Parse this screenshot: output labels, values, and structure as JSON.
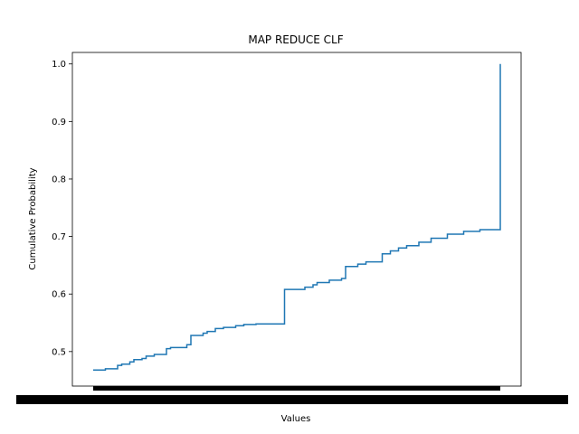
{
  "chart_data": {
    "type": "line",
    "title": "MAP REDUCE CLF",
    "xlabel": "Values",
    "ylabel": "Cumulative Probability",
    "ylim": [
      0.44,
      1.02
    ],
    "y_ticks": [
      "0.5",
      "0.6",
      "0.7",
      "0.8",
      "0.9",
      "1.0"
    ],
    "x_tick_labels_note": "x tick labels are dense overlapping text, rendered as a solid black band",
    "grid": false,
    "legend": "none",
    "line_color": "#1f77b4",
    "series": [
      {
        "x": [
          0,
          0.03,
          0.06,
          0.07,
          0.09,
          0.1,
          0.12,
          0.13,
          0.15,
          0.18,
          0.19,
          0.23,
          0.24,
          0.27,
          0.28,
          0.3,
          0.32,
          0.35,
          0.37,
          0.4,
          0.47,
          0.47,
          0.52,
          0.54,
          0.55,
          0.58,
          0.61,
          0.62,
          0.65,
          0.67,
          0.71,
          0.73,
          0.75,
          0.77,
          0.8,
          0.83,
          0.87,
          0.91,
          0.95,
          1.0,
          1.0
        ],
        "y": [
          0.468,
          0.47,
          0.476,
          0.478,
          0.482,
          0.486,
          0.488,
          0.492,
          0.495,
          0.505,
          0.507,
          0.512,
          0.528,
          0.532,
          0.535,
          0.54,
          0.542,
          0.545,
          0.547,
          0.548,
          0.548,
          0.608,
          0.612,
          0.616,
          0.62,
          0.624,
          0.627,
          0.648,
          0.652,
          0.656,
          0.67,
          0.675,
          0.68,
          0.684,
          0.69,
          0.697,
          0.704,
          0.709,
          0.712,
          0.715,
          1.0
        ]
      }
    ]
  }
}
